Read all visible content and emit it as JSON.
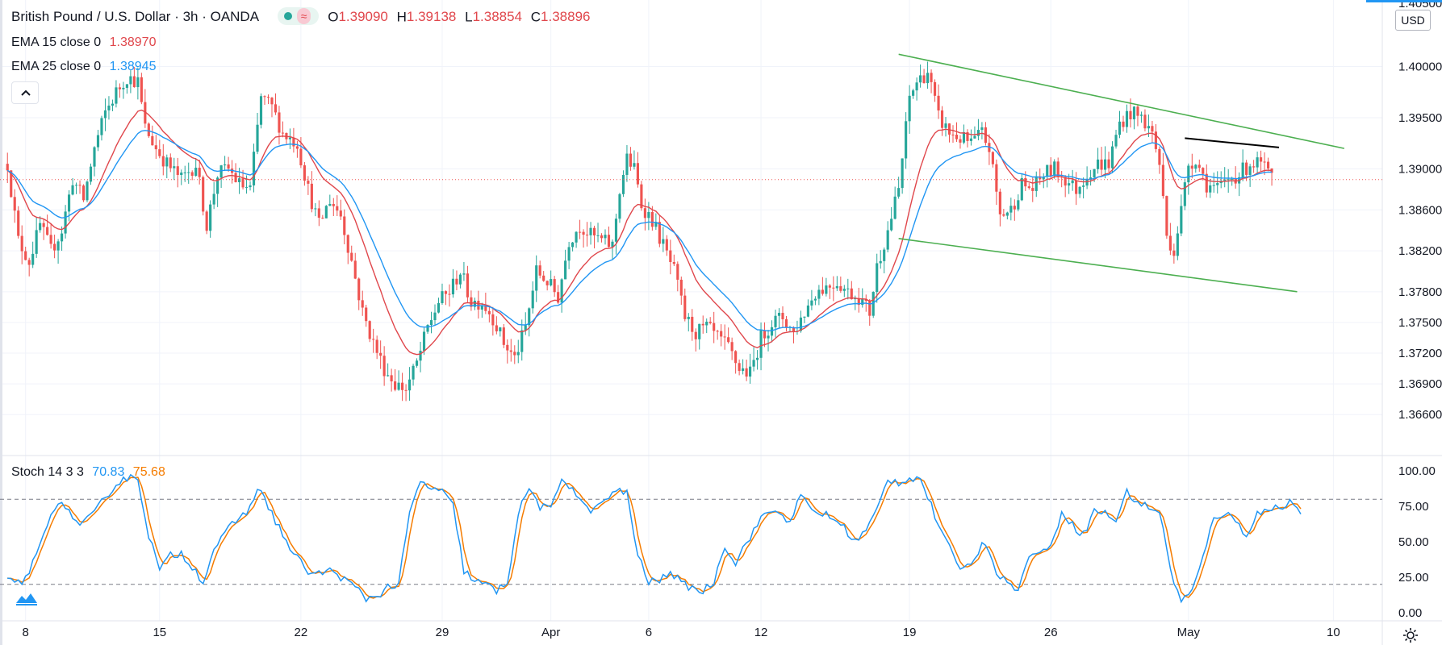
{
  "header": {
    "title": "British Pound / U.S. Dollar · 3h · OANDA",
    "ohlc": [
      {
        "k": "O",
        "v": "1.39090"
      },
      {
        "k": "H",
        "v": "1.39138"
      },
      {
        "k": "L",
        "v": "1.38854"
      },
      {
        "k": "C",
        "v": "1.38896"
      }
    ],
    "currency": "USD",
    "top_partial_label": "1.40500"
  },
  "indicators": {
    "ema1": {
      "label": "EMA 15 close 0",
      "value": "1.38970",
      "color": "#e0474c"
    },
    "ema2": {
      "label": "EMA 25 close 0",
      "value": "1.38945",
      "color": "#2196f3"
    },
    "stoch": {
      "label": "Stoch 14 3 3",
      "k_value": "70.83",
      "d_value": "75.68",
      "k_color": "#2196f3",
      "d_color": "#f57c00"
    }
  },
  "chart_data": {
    "type": "candlestick",
    "symbol": "GBPUSD",
    "timeframe": "3h",
    "price_axis": {
      "ticks": [
        "1.40000",
        "1.39500",
        "1.39000",
        "1.38600",
        "1.38200",
        "1.37800",
        "1.37500",
        "1.37200",
        "1.36900",
        "1.36600"
      ],
      "range": [
        1.362,
        1.4065
      ]
    },
    "stoch_axis": {
      "ticks": [
        "100.00",
        "75.00",
        "50.00",
        "25.00",
        "0.00"
      ],
      "levels": [
        80,
        20
      ]
    },
    "time_axis": {
      "ticks": [
        "8",
        "15",
        "22",
        "29",
        "Apr",
        "6",
        "12",
        "19",
        "26",
        "May",
        "10"
      ],
      "tick_slot": [
        5,
        42,
        81,
        120,
        150,
        177,
        208,
        249,
        288,
        326,
        366
      ],
      "total_slots": 380
    },
    "price_anchors": [
      [
        0,
        1.3905
      ],
      [
        3,
        1.383
      ],
      [
        6,
        1.381
      ],
      [
        9,
        1.3845
      ],
      [
        12,
        1.382
      ],
      [
        15,
        1.384
      ],
      [
        18,
        1.389
      ],
      [
        21,
        1.387
      ],
      [
        24,
        1.392
      ],
      [
        27,
        1.3955
      ],
      [
        30,
        1.3975
      ],
      [
        33,
        1.399
      ],
      [
        36,
        1.3985
      ],
      [
        38,
        1.394
      ],
      [
        41,
        1.392
      ],
      [
        44,
        1.3905
      ],
      [
        48,
        1.389
      ],
      [
        52,
        1.3905
      ],
      [
        55,
        1.3845
      ],
      [
        58,
        1.3895
      ],
      [
        61,
        1.39
      ],
      [
        64,
        1.3885
      ],
      [
        67,
        1.388
      ],
      [
        70,
        1.397
      ],
      [
        73,
        1.396
      ],
      [
        76,
        1.3935
      ],
      [
        80,
        1.3925
      ],
      [
        83,
        1.388
      ],
      [
        86,
        1.3845
      ],
      [
        89,
        1.387
      ],
      [
        92,
        1.3855
      ],
      [
        95,
        1.381
      ],
      [
        98,
        1.376
      ],
      [
        101,
        1.373
      ],
      [
        104,
        1.3705
      ],
      [
        107,
        1.369
      ],
      [
        110,
        1.3685
      ],
      [
        113,
        1.371
      ],
      [
        116,
        1.3745
      ],
      [
        119,
        1.377
      ],
      [
        122,
        1.378
      ],
      [
        125,
        1.38
      ],
      [
        128,
        1.377
      ],
      [
        131,
        1.377
      ],
      [
        134,
        1.3755
      ],
      [
        137,
        1.373
      ],
      [
        140,
        1.3715
      ],
      [
        143,
        1.3745
      ],
      [
        146,
        1.38
      ],
      [
        149,
        1.379
      ],
      [
        152,
        1.3775
      ],
      [
        155,
        1.383
      ],
      [
        158,
        1.3845
      ],
      [
        161,
        1.3835
      ],
      [
        164,
        1.383
      ],
      [
        167,
        1.3825
      ],
      [
        169,
        1.388
      ],
      [
        171,
        1.391
      ],
      [
        173,
        1.39
      ],
      [
        175,
        1.3865
      ],
      [
        178,
        1.385
      ],
      [
        181,
        1.3825
      ],
      [
        184,
        1.38
      ],
      [
        187,
        1.3755
      ],
      [
        190,
        1.374
      ],
      [
        193,
        1.3745
      ],
      [
        196,
        1.3735
      ],
      [
        199,
        1.3725
      ],
      [
        202,
        1.3705
      ],
      [
        205,
        1.37
      ],
      [
        208,
        1.3735
      ],
      [
        211,
        1.375
      ],
      [
        214,
        1.3755
      ],
      [
        217,
        1.374
      ],
      [
        220,
        1.376
      ],
      [
        223,
        1.378
      ],
      [
        226,
        1.3785
      ],
      [
        229,
        1.379
      ],
      [
        232,
        1.378
      ],
      [
        235,
        1.3775
      ],
      [
        238,
        1.376
      ],
      [
        240,
        1.3805
      ],
      [
        243,
        1.384
      ],
      [
        246,
        1.388
      ],
      [
        249,
        1.397
      ],
      [
        251,
        1.3985
      ],
      [
        254,
        1.3995
      ],
      [
        257,
        1.395
      ],
      [
        260,
        1.3935
      ],
      [
        263,
        1.393
      ],
      [
        266,
        1.3925
      ],
      [
        269,
        1.3935
      ],
      [
        271,
        1.392
      ],
      [
        274,
        1.3855
      ],
      [
        277,
        1.386
      ],
      [
        280,
        1.3885
      ],
      [
        283,
        1.388
      ],
      [
        286,
        1.3895
      ],
      [
        289,
        1.39
      ],
      [
        292,
        1.389
      ],
      [
        295,
        1.388
      ],
      [
        298,
        1.3895
      ],
      [
        301,
        1.3905
      ],
      [
        304,
        1.3905
      ],
      [
        307,
        1.3945
      ],
      [
        310,
        1.3955
      ],
      [
        313,
        1.395
      ],
      [
        316,
        1.3935
      ],
      [
        318,
        1.3905
      ],
      [
        320,
        1.3835
      ],
      [
        322,
        1.382
      ],
      [
        324,
        1.386
      ],
      [
        326,
        1.3905
      ],
      [
        328,
        1.391
      ],
      [
        331,
        1.3885
      ],
      [
        334,
        1.388
      ],
      [
        337,
        1.389
      ],
      [
        340,
        1.3895
      ],
      [
        343,
        1.3905
      ],
      [
        346,
        1.3905
      ],
      [
        349,
        1.389
      ]
    ],
    "stoch_anchors": [
      [
        0,
        22
      ],
      [
        4,
        20
      ],
      [
        8,
        40
      ],
      [
        12,
        72
      ],
      [
        16,
        76
      ],
      [
        20,
        60
      ],
      [
        24,
        70
      ],
      [
        28,
        85
      ],
      [
        32,
        95
      ],
      [
        36,
        95
      ],
      [
        39,
        55
      ],
      [
        42,
        30
      ],
      [
        45,
        40
      ],
      [
        48,
        42
      ],
      [
        51,
        33
      ],
      [
        54,
        22
      ],
      [
        57,
        45
      ],
      [
        60,
        55
      ],
      [
        63,
        65
      ],
      [
        66,
        70
      ],
      [
        69,
        88
      ],
      [
        72,
        75
      ],
      [
        75,
        60
      ],
      [
        78,
        45
      ],
      [
        81,
        35
      ],
      [
        84,
        27
      ],
      [
        87,
        28
      ],
      [
        90,
        30
      ],
      [
        93,
        23
      ],
      [
        96,
        18
      ],
      [
        99,
        10
      ],
      [
        102,
        12
      ],
      [
        105,
        18
      ],
      [
        108,
        20
      ],
      [
        111,
        70
      ],
      [
        114,
        92
      ],
      [
        117,
        88
      ],
      [
        120,
        85
      ],
      [
        123,
        75
      ],
      [
        126,
        30
      ],
      [
        129,
        22
      ],
      [
        132,
        20
      ],
      [
        135,
        15
      ],
      [
        138,
        22
      ],
      [
        141,
        70
      ],
      [
        144,
        88
      ],
      [
        147,
        75
      ],
      [
        150,
        72
      ],
      [
        153,
        95
      ],
      [
        156,
        88
      ],
      [
        159,
        75
      ],
      [
        162,
        72
      ],
      [
        165,
        80
      ],
      [
        168,
        85
      ],
      [
        171,
        85
      ],
      [
        174,
        40
      ],
      [
        177,
        22
      ],
      [
        180,
        22
      ],
      [
        183,
        30
      ],
      [
        186,
        20
      ],
      [
        189,
        18
      ],
      [
        192,
        15
      ],
      [
        195,
        22
      ],
      [
        198,
        48
      ],
      [
        201,
        35
      ],
      [
        204,
        50
      ],
      [
        207,
        62
      ],
      [
        210,
        72
      ],
      [
        213,
        70
      ],
      [
        216,
        65
      ],
      [
        219,
        82
      ],
      [
        222,
        72
      ],
      [
        225,
        70
      ],
      [
        228,
        66
      ],
      [
        231,
        60
      ],
      [
        234,
        50
      ],
      [
        237,
        58
      ],
      [
        240,
        72
      ],
      [
        243,
        94
      ],
      [
        246,
        92
      ],
      [
        249,
        95
      ],
      [
        252,
        95
      ],
      [
        255,
        75
      ],
      [
        258,
        55
      ],
      [
        261,
        40
      ],
      [
        264,
        30
      ],
      [
        267,
        40
      ],
      [
        270,
        50
      ],
      [
        273,
        30
      ],
      [
        276,
        20
      ],
      [
        279,
        18
      ],
      [
        282,
        38
      ],
      [
        285,
        45
      ],
      [
        288,
        45
      ],
      [
        291,
        72
      ],
      [
        294,
        62
      ],
      [
        297,
        55
      ],
      [
        300,
        72
      ],
      [
        303,
        70
      ],
      [
        306,
        65
      ],
      [
        309,
        85
      ],
      [
        312,
        78
      ],
      [
        315,
        74
      ],
      [
        318,
        72
      ],
      [
        321,
        30
      ],
      [
        324,
        8
      ],
      [
        327,
        15
      ],
      [
        330,
        38
      ],
      [
        333,
        68
      ],
      [
        336,
        70
      ],
      [
        339,
        65
      ],
      [
        342,
        55
      ],
      [
        345,
        70
      ],
      [
        348,
        72
      ],
      [
        351,
        75
      ],
      [
        354,
        78
      ],
      [
        357,
        72
      ]
    ],
    "trendlines": [
      {
        "name": "upper-channel",
        "color": "#4caf50",
        "from": [
          246,
          1.4012
        ],
        "to": [
          369,
          1.392
        ]
      },
      {
        "name": "lower-channel",
        "color": "#4caf50",
        "from": [
          246,
          1.3832
        ],
        "to": [
          356,
          1.378
        ]
      },
      {
        "name": "resistance",
        "color": "#000000",
        "from": [
          325,
          1.393
        ],
        "to": [
          351,
          1.3921
        ]
      }
    ],
    "last_price": 1.38896,
    "ema_periods": [
      15,
      25
    ]
  }
}
